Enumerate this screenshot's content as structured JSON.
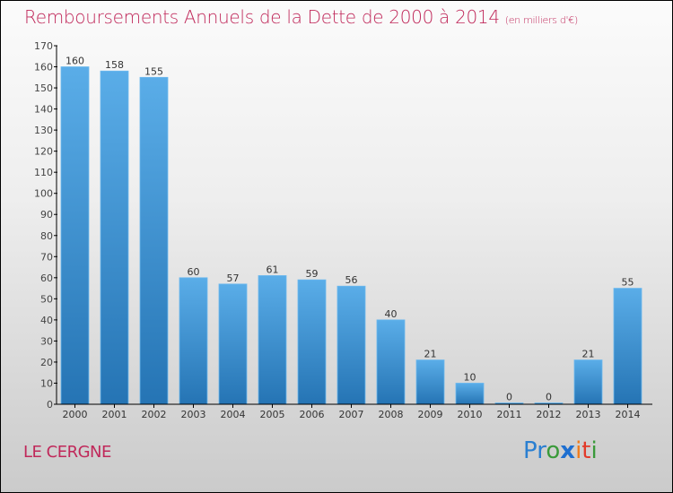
{
  "header": {
    "title": "Remboursements Annuels de la Dette de 2000 à 2014",
    "unit": "(en milliers d'€)"
  },
  "footer": {
    "commune": "LE CERGNE",
    "logo": [
      "P",
      "r",
      "o",
      "x",
      "i",
      "t",
      "i"
    ],
    "logo_colors": [
      "#2a7fd1",
      "#2a7fd1",
      "#3a9a3a",
      "#1e6fd0",
      "#f07b1a",
      "#e23a2a",
      "#3a9a3a"
    ]
  },
  "colors": {
    "bar_top": "#5aade8",
    "bar_bottom": "#2574b4",
    "accent": "#c0285a"
  },
  "chart_data": {
    "type": "bar",
    "title": "Remboursements Annuels de la Dette de 2000 à 2014",
    "subtitle": "(en milliers d'€)",
    "xlabel": "",
    "ylabel": "",
    "categories": [
      "2000",
      "2001",
      "2002",
      "2003",
      "2004",
      "2005",
      "2006",
      "2007",
      "2008",
      "2009",
      "2010",
      "2011",
      "2012",
      "2013",
      "2014"
    ],
    "values": [
      160,
      158,
      155,
      60,
      57,
      61,
      59,
      56,
      40,
      21,
      10,
      0,
      0,
      21,
      55
    ],
    "ylim": [
      0,
      170
    ],
    "yticks": [
      0,
      10,
      20,
      30,
      40,
      50,
      60,
      70,
      80,
      90,
      100,
      110,
      120,
      130,
      140,
      150,
      160,
      170
    ],
    "grid": false,
    "legend": "none"
  }
}
